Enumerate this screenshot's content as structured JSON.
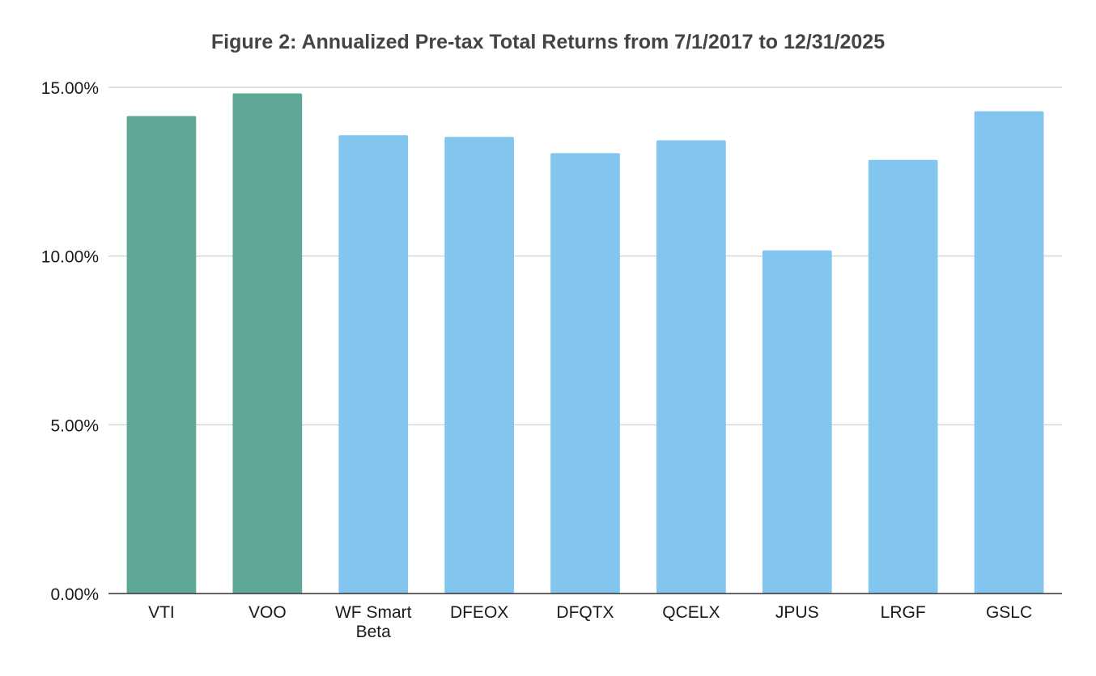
{
  "chart_data": {
    "type": "bar",
    "title": "Figure 2: Annualized Pre-tax Total Returns from 7/1/2017 to 12/31/2025",
    "xlabel": "",
    "ylabel": "",
    "categories": [
      "VTI",
      "VOO",
      "WF Smart Beta",
      "DFEOX",
      "DFQTX",
      "QCELX",
      "JPUS",
      "LRGF",
      "GSLC"
    ],
    "category_lines": [
      [
        "VTI"
      ],
      [
        "VOO"
      ],
      [
        "WF Smart",
        "Beta"
      ],
      [
        "DFEOX"
      ],
      [
        "DFQTX"
      ],
      [
        "QCELX"
      ],
      [
        "JPUS"
      ],
      [
        "LRGF"
      ],
      [
        "GSLC"
      ]
    ],
    "values": [
      14.15,
      14.82,
      13.58,
      13.53,
      13.05,
      13.43,
      10.17,
      12.85,
      14.29
    ],
    "bar_colors": [
      "#5fa797",
      "#5fa797",
      "#82c5ee",
      "#82c5ee",
      "#82c5ee",
      "#82c5ee",
      "#82c5ee",
      "#82c5ee",
      "#82c5ee"
    ],
    "ylim": [
      0,
      15
    ],
    "yticks": [
      0,
      5,
      10,
      15
    ],
    "ytick_labels": [
      "0.00%",
      "5.00%",
      "10.00%",
      "15.00%"
    ],
    "grid": true,
    "legend": false,
    "gridline_color": "#cccccc",
    "axis_color": "#333333"
  }
}
